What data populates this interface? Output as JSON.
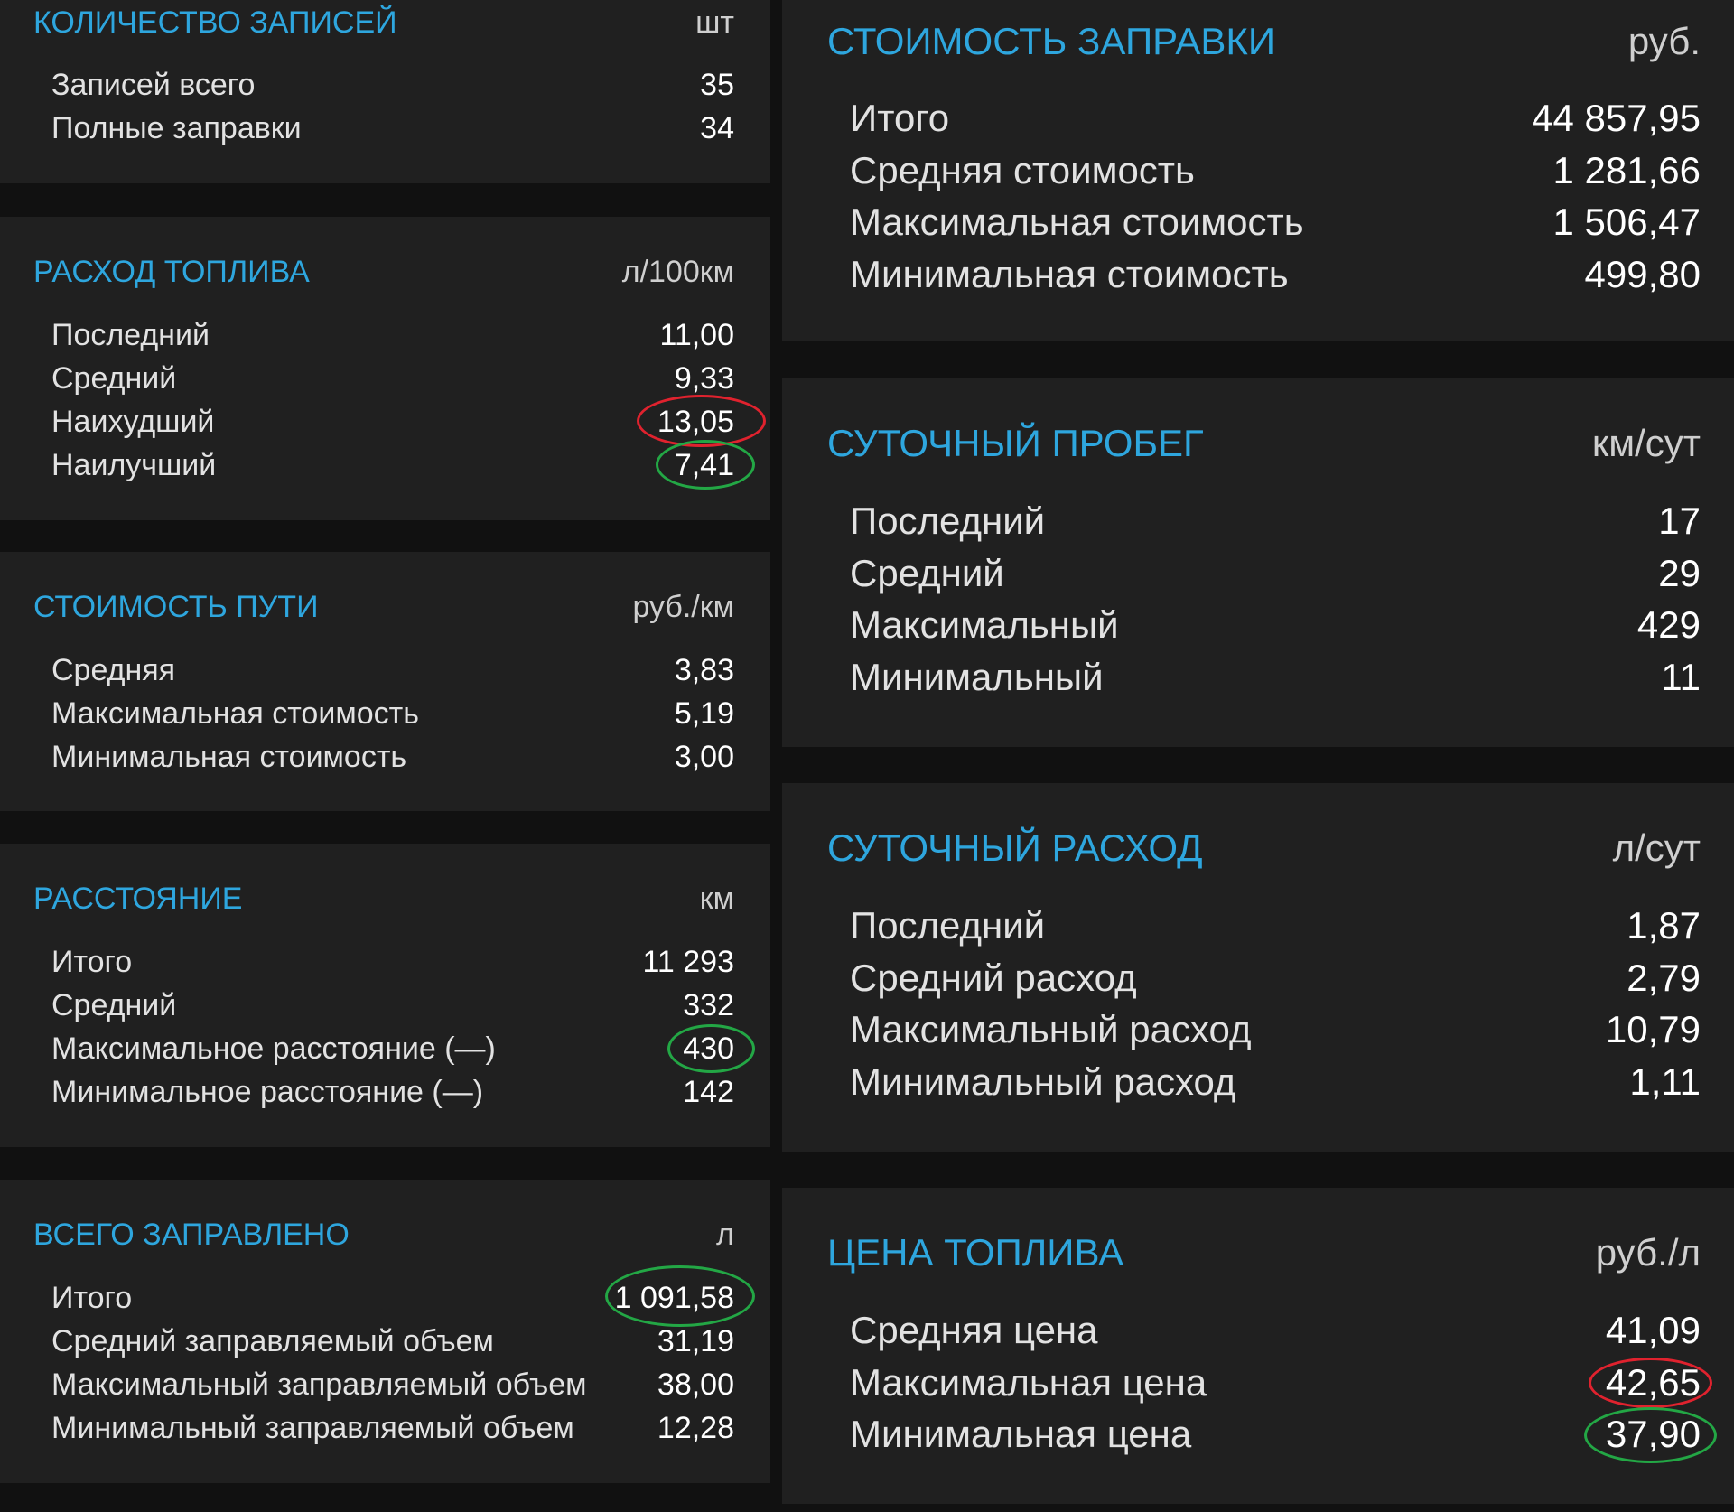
{
  "colors": {
    "background": "#111111",
    "card": "#202020",
    "accent_title": "#2ea6de",
    "highlight_worst": "#e0222e",
    "highlight_best": "#23a745"
  },
  "left": {
    "count": {
      "title": "КОЛИЧЕСТВО ЗАПИСЕЙ",
      "unit": "шт",
      "rows": [
        {
          "label": "Записей всего",
          "value": "35"
        },
        {
          "label": "Полные заправки",
          "value": "34"
        }
      ]
    },
    "consumption": {
      "title": "РАСХОД ТОПЛИВА",
      "unit": "л/100км",
      "rows": [
        {
          "label": "Последний",
          "value": "11,00"
        },
        {
          "label": "Средний",
          "value": "9,33"
        },
        {
          "label": "Наихудший",
          "value": "13,05",
          "highlight": "red"
        },
        {
          "label": "Наилучший",
          "value": "7,41",
          "highlight": "green"
        }
      ]
    },
    "trip_cost": {
      "title": "СТОИМОСТЬ ПУТИ",
      "unit": "руб./км",
      "rows": [
        {
          "label": "Средняя",
          "value": "3,83"
        },
        {
          "label": "Максимальная стоимость",
          "value": "5,19"
        },
        {
          "label": "Минимальная стоимость",
          "value": "3,00"
        }
      ]
    },
    "distance": {
      "title": "РАССТОЯНИЕ",
      "unit": "км",
      "rows": [
        {
          "label": "Итого",
          "value": "11 293"
        },
        {
          "label": "Средний",
          "value": "332"
        },
        {
          "label": "Максимальное расстояние (—)",
          "value": "430",
          "highlight": "green"
        },
        {
          "label": "Минимальное расстояние (—)",
          "value": "142"
        }
      ]
    },
    "total_fueled": {
      "title": "ВСЕГО ЗАПРАВЛЕНО",
      "unit": "л",
      "rows": [
        {
          "label": "Итого",
          "value": "1 091,58",
          "highlight": "green"
        },
        {
          "label": "Средний заправляемый объем",
          "value": "31,19"
        },
        {
          "label": "Максимальный заправляемый объем",
          "value": "38,00"
        },
        {
          "label": "Минимальный заправляемый объем",
          "value": "12,28"
        }
      ]
    }
  },
  "right": {
    "refuel_cost": {
      "title": "СТОИМОСТЬ ЗАПРАВКИ",
      "unit": "руб.",
      "rows": [
        {
          "label": "Итого",
          "value": "44 857,95"
        },
        {
          "label": "Средняя стоимость",
          "value": "1 281,66"
        },
        {
          "label": "Максимальная стоимость",
          "value": "1 506,47"
        },
        {
          "label": "Минимальная стоимость",
          "value": "499,80"
        }
      ]
    },
    "daily_mileage": {
      "title": "СУТОЧНЫЙ ПРОБЕГ",
      "unit": "км/сут",
      "rows": [
        {
          "label": "Последний",
          "value": "17"
        },
        {
          "label": "Средний",
          "value": "29"
        },
        {
          "label": "Максимальный",
          "value": "429"
        },
        {
          "label": "Минимальный",
          "value": "11"
        }
      ]
    },
    "daily_consumption": {
      "title": "СУТОЧНЫЙ РАСХОД",
      "unit": "л/сут",
      "rows": [
        {
          "label": "Последний",
          "value": "1,87"
        },
        {
          "label": "Средний расход",
          "value": "2,79"
        },
        {
          "label": "Максимальный расход",
          "value": "10,79"
        },
        {
          "label": "Минимальный расход",
          "value": "1,11"
        }
      ]
    },
    "fuel_price": {
      "title": "ЦЕНА ТОПЛИВА",
      "unit": "руб./л",
      "rows": [
        {
          "label": "Средняя цена",
          "value": "41,09"
        },
        {
          "label": "Максимальная цена",
          "value": "42,65",
          "highlight": "red"
        },
        {
          "label": "Минимальная цена",
          "value": "37,90",
          "highlight": "green"
        }
      ]
    }
  }
}
